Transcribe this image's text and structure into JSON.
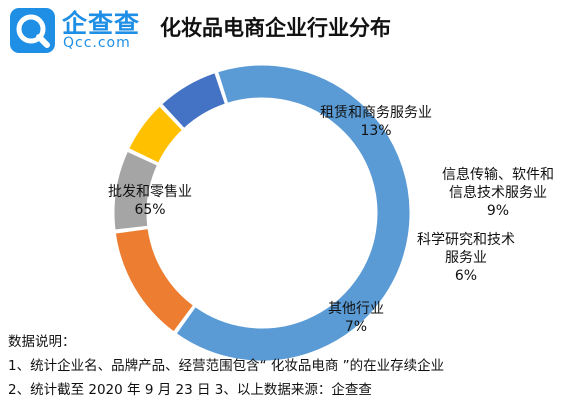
{
  "header": {
    "brand_cn": "企查查",
    "brand_en": "Qcc.com",
    "title": "化妆品电商企业行业分布"
  },
  "chart_data": {
    "type": "pie",
    "title": "化妆品电商企业行业分布",
    "slices": [
      {
        "label": "批发和零售业",
        "value": 65,
        "value_label": "65%",
        "color": "#5b9bd5",
        "label_lines": [
          "批发和零售业",
          "65%"
        ]
      },
      {
        "label": "租赁和商务服务业",
        "value": 13,
        "value_label": "13%",
        "color": "#ed7d31",
        "label_lines": [
          "租赁和商务服务业",
          "13%"
        ]
      },
      {
        "label": "信息传输、软件和信息技术服务业",
        "value": 9,
        "value_label": "9%",
        "color": "#a5a5a5",
        "label_lines": [
          "信息传输、软件和",
          "信息技术服务业",
          "9%"
        ]
      },
      {
        "label": "科学研究和技术服务业",
        "value": 6,
        "value_label": "6%",
        "color": "#ffc000",
        "label_lines": [
          "科学研究和技术",
          "服务业",
          "6%"
        ]
      },
      {
        "label": "其他行业",
        "value": 7,
        "value_label": "7%",
        "color": "#4472c4",
        "label_lines": [
          "其他行业",
          "7%"
        ]
      }
    ]
  },
  "notes": {
    "heading": "数据说明：",
    "line1": "1、统计企业名、品牌产品、经营范围包含“ 化妆品电商 ”的在业存续企业",
    "line2": "2、统计截至 2020 年 9 月 23 日  3、以上数据来源：企查查"
  }
}
